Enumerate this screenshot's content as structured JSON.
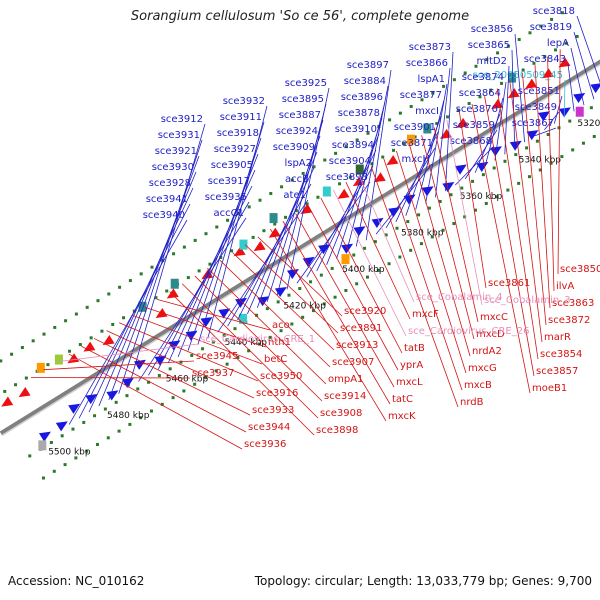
{
  "title": "Sorangium cellulosum 'So ce 56', complete genome",
  "accession": "Accession: NC_010162",
  "topology": "Topology: circular; Length: 13,033,779 bp; Genes: 9,700",
  "colors": {
    "forward_label": "#2020c8",
    "reverse_label": "#d41414",
    "misc_feature": "#e890b8",
    "rna_feature": "#39b8d8",
    "forward_gene": "#1818e0",
    "reverse_gene": "#ee1010",
    "backbone": "#808080",
    "tick_dots": "#2a7a2a"
  },
  "axis": {
    "unit": "kbp",
    "ticks": [
      "5320 kbp",
      "5340 kbp",
      "5360 kbp",
      "5380 kbp",
      "5400 kbp",
      "5420 kbp",
      "5440 kbp",
      "5460 kbp",
      "5480 kbp",
      "5500 kbp"
    ]
  },
  "forward_labels": [
    "sce3818",
    "sce3819",
    "lepA",
    "sce3843",
    "sce_20050509_45",
    "sce3851",
    "sce3849",
    "sce3867",
    "sce3856",
    "sce3865",
    "mltD2",
    "sce3874",
    "sce3864",
    "sce3870",
    "sce3859",
    "sce3868",
    "sce3873",
    "sce3866",
    "lspA1",
    "sce3877",
    "mxcI",
    "sce3901",
    "sce3871",
    "mxcH",
    "sce3897",
    "sce3884",
    "sce3896",
    "sce3878",
    "sce3910",
    "sce3894",
    "sce3904",
    "sce3893",
    "sce3925",
    "sce3895",
    "sce3887",
    "sce3924",
    "sce3909",
    "lspA2",
    "accB",
    "ate1",
    "sce3932",
    "sce3911",
    "sce3918",
    "sce3927",
    "sce3905",
    "sce3917",
    "sce3935",
    "accC1",
    "sce3912",
    "sce3931",
    "sce3921",
    "sce3930",
    "sce3928",
    "sce3941",
    "sce3940"
  ],
  "reverse_labels": [
    "sce3850",
    "ilvA",
    "sce3863",
    "sce3872",
    "marR",
    "sce3854",
    "sce3857",
    "moeB1",
    "sce3861",
    "sce_Cobalamin_3",
    "mxcC",
    "mxcD",
    "nrdA2",
    "mxcG",
    "mxcB",
    "nrdB",
    "sce_Cobalamin_4",
    "mxcF",
    "sce_Cardiovirus_CRE_26",
    "tatB",
    "yprA",
    "mxcL",
    "tatC",
    "mxcK",
    "sce3920",
    "sce3891",
    "sce3913",
    "sce3907",
    "ompA1",
    "sce3914",
    "sce3908",
    "sce3898",
    "aco",
    "nth1",
    "betC",
    "sce3950",
    "sce3916",
    "sce3933",
    "sce3944",
    "sce3936",
    "sce_Cardiovirus_CRE_1",
    "sce3945",
    "sce3937"
  ],
  "misc_labels": [
    "sce_20050509_45",
    "sce_Cobalamin_3",
    "sce_Cobalamin_4",
    "sce_Cardiovirus_CRE_26",
    "sce_Cardiovirus_CRE_1"
  ]
}
